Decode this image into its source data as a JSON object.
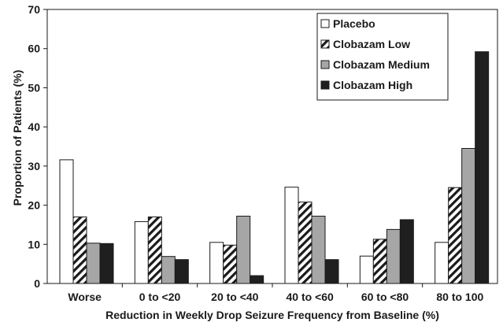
{
  "chart_data": {
    "type": "bar",
    "title": "",
    "xlabel": "Reduction in Weekly Drop Seizure Frequency from Baseline (%)",
    "ylabel": "Proportion of Patients (%)",
    "ylim": [
      0,
      70
    ],
    "yticks": [
      0,
      10,
      20,
      30,
      40,
      50,
      60,
      70
    ],
    "grid": false,
    "legend_position": "top-right",
    "categories": [
      "Worse",
      "0 to <20",
      "20 to <40",
      "40 to <60",
      "60 to <80",
      "80 to 100"
    ],
    "series": [
      {
        "name": "Placebo",
        "style": "white",
        "values": [
          31.6,
          15.8,
          10.5,
          24.6,
          7.0,
          10.5
        ]
      },
      {
        "name": "Clobazam Low",
        "style": "hatched",
        "values": [
          17.0,
          17.0,
          9.8,
          20.8,
          11.3,
          24.5
        ]
      },
      {
        "name": "Clobazam Medium",
        "style": "gray",
        "values": [
          10.3,
          6.9,
          17.2,
          17.2,
          13.8,
          34.5
        ]
      },
      {
        "name": "Clobazam High",
        "style": "black",
        "values": [
          10.2,
          6.1,
          2.0,
          6.1,
          16.3,
          59.2
        ]
      }
    ]
  },
  "colors": {
    "white": "#ffffff",
    "gray": "#a6a6a6",
    "black": "#1f1f1f",
    "stroke": "#1a1a1a"
  }
}
